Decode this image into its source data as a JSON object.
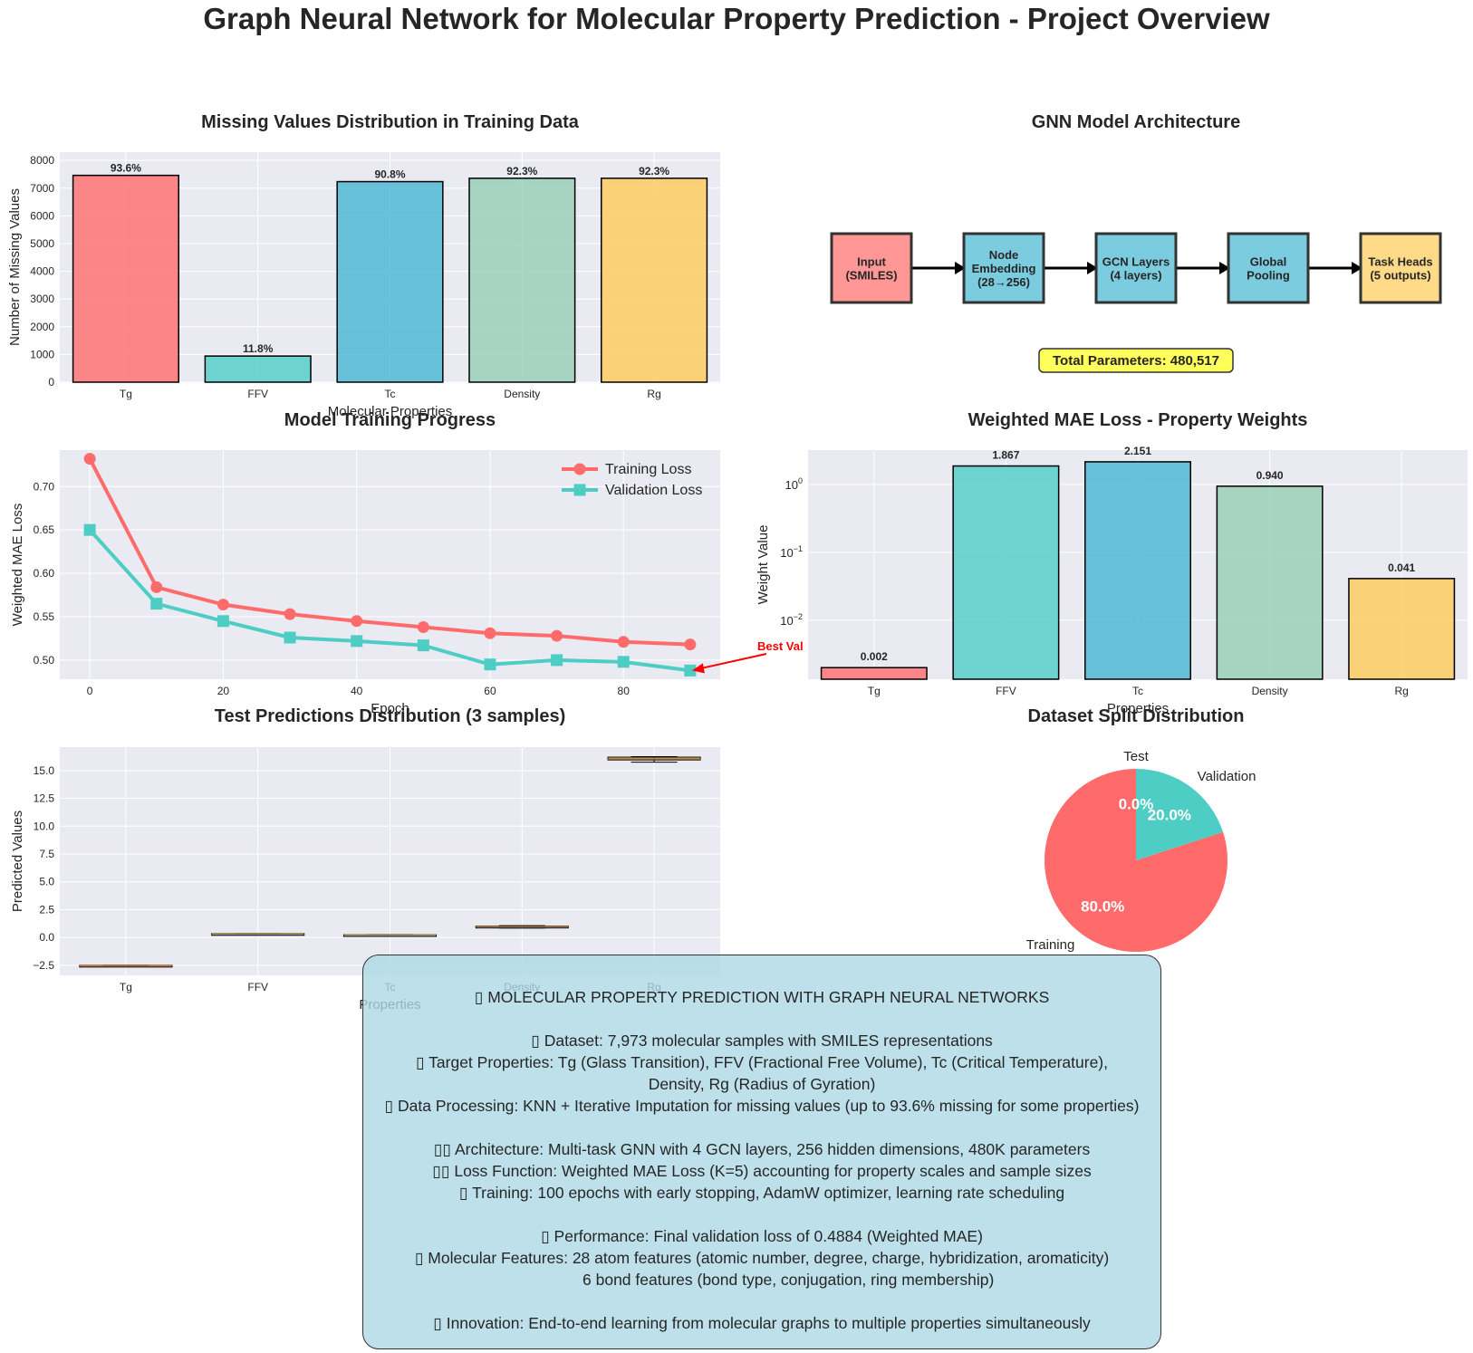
{
  "page_title": "Graph Neural Network for Molecular Property Prediction - Project Overview",
  "colors": {
    "tg": "#ff6b6b",
    "ffv": "#4ecdc4",
    "tc": "#45b7d1",
    "density": "#96ceb4",
    "rg": "#feca57",
    "panel_bg": "#eaeaf2",
    "training": "#ff6b6b",
    "validation": "#4ecdc4",
    "input_box": "#ff6b6b",
    "mid_box": "#45b7d1",
    "out_box": "#feca57",
    "param_badge": "#ffff33"
  },
  "chart_data": [
    {
      "id": "missing",
      "type": "bar",
      "title": "Missing Values Distribution in Training Data",
      "xlabel": "Molecular Properties",
      "ylabel": "Number of Missing Values",
      "categories": [
        "Tg",
        "FFV",
        "Tc",
        "Density",
        "Rg"
      ],
      "values": [
        7462,
        943,
        7236,
        7357,
        7357
      ],
      "data_labels": [
        "93.6%",
        "11.8%",
        "90.8%",
        "92.3%",
        "92.3%"
      ],
      "ylim": [
        0,
        8300
      ],
      "yticks": [
        0,
        1000,
        2000,
        3000,
        4000,
        5000,
        6000,
        7000,
        8000
      ],
      "grid": true
    },
    {
      "id": "architecture",
      "type": "diagram",
      "title": "GNN Model Architecture",
      "nodes": [
        {
          "lines": [
            "Input",
            "(SMILES)"
          ]
        },
        {
          "lines": [
            "Node",
            "Embedding",
            "(28→256)"
          ]
        },
        {
          "lines": [
            "GCN Layers",
            "(4 layers)"
          ]
        },
        {
          "lines": [
            "Global",
            "Pooling"
          ]
        },
        {
          "lines": [
            "Task Heads",
            "(5 outputs)"
          ]
        }
      ],
      "badge": "Total Parameters: 480,517"
    },
    {
      "id": "training",
      "type": "line",
      "title": "Model Training Progress",
      "xlabel": "Epoch",
      "ylabel": "Weighted MAE Loss",
      "x": [
        0,
        10,
        20,
        30,
        40,
        50,
        60,
        70,
        80,
        90
      ],
      "series": [
        {
          "name": "Training Loss",
          "values": [
            0.732,
            0.584,
            0.564,
            0.553,
            0.545,
            0.538,
            0.531,
            0.528,
            0.521,
            0.518
          ]
        },
        {
          "name": "Validation Loss",
          "values": [
            0.65,
            0.565,
            0.545,
            0.526,
            0.522,
            0.517,
            0.495,
            0.5,
            0.498,
            0.488
          ]
        }
      ],
      "xlim": [
        -4.5,
        94.5
      ],
      "ylim": [
        0.478,
        0.742
      ],
      "xticks": [
        0,
        20,
        40,
        60,
        80
      ],
      "yticks": [
        0.5,
        0.55,
        0.6,
        0.65,
        0.7
      ],
      "ytick_labels": [
        "0.50",
        "0.55",
        "0.60",
        "0.65",
        "0.70"
      ],
      "annotation": {
        "text": "Best Val",
        "x": 90,
        "y": 0.488
      },
      "legend": "top-right",
      "grid": true
    },
    {
      "id": "weights",
      "type": "bar",
      "title": "Weighted MAE Loss - Property Weights",
      "xlabel": "Properties",
      "ylabel": "Weight Value",
      "categories": [
        "Tg",
        "FFV",
        "Tc",
        "Density",
        "Rg"
      ],
      "values": [
        0.002,
        1.867,
        2.151,
        0.94,
        0.041
      ],
      "data_labels": [
        "0.002",
        "1.867",
        "2.151",
        "0.940",
        "0.041"
      ],
      "yscale": "log",
      "ylim": [
        0.00135,
        3.2
      ],
      "ytick_labels": [
        {
          "base": "10",
          "exp": "0",
          "value": 1
        },
        {
          "base": "10",
          "exp": "−1",
          "value": 0.1
        },
        {
          "base": "10",
          "exp": "−2",
          "value": 0.01
        }
      ],
      "grid": true
    },
    {
      "id": "predictions",
      "type": "box",
      "title": "Test Predictions Distribution (3 samples)",
      "xlabel": "Properties",
      "ylabel": "Predicted Values",
      "categories": [
        "Tg",
        "FFV",
        "Tc",
        "Density",
        "Rg"
      ],
      "boxes": [
        {
          "min": -2.55,
          "q1": -2.53,
          "median": -2.51,
          "q3": -2.49,
          "max": -2.48
        },
        {
          "min": 0.33,
          "q1": 0.34,
          "median": 0.35,
          "q3": 0.36,
          "max": 0.37
        },
        {
          "min": 0.23,
          "q1": 0.24,
          "median": 0.25,
          "q3": 0.26,
          "max": 0.27
        },
        {
          "min": 0.85,
          "q1": 0.92,
          "median": 0.96,
          "q3": 1.02,
          "max": 1.06
        },
        {
          "min": 15.75,
          "q1": 15.95,
          "median": 16.05,
          "q3": 16.2,
          "max": 16.25
        }
      ],
      "ylim": [
        -3.4,
        17.1
      ],
      "yticks": [
        -2.5,
        0.0,
        2.5,
        5.0,
        7.5,
        10.0,
        12.5,
        15.0
      ],
      "ytick_labels": [
        "−2.5",
        "0.0",
        "2.5",
        "5.0",
        "7.5",
        "10.0",
        "12.5",
        "15.0"
      ],
      "grid": true
    },
    {
      "id": "split",
      "type": "pie",
      "title": "Dataset Split Distribution",
      "labels": [
        "Training",
        "Validation",
        "Test"
      ],
      "values": [
        80.0,
        20.0,
        0.0
      ],
      "pct_labels": [
        "80.0%",
        "20.0%",
        "0.0%"
      ]
    }
  ],
  "summary": {
    "lines": [
      "▯ MOLECULAR PROPERTY PREDICTION WITH GRAPH NEURAL NETWORKS",
      "",
      "▯ Dataset: 7,973 molecular samples with SMILES representations",
      "▯ Target Properties: Tg (Glass Transition), FFV (Fractional Free Volume), Tc (Critical Temperature),",
      "Density, Rg (Radius of Gyration)",
      "▯ Data Processing: KNN + Iterative Imputation for missing values (up to 93.6% missing for some properties)",
      "",
      "▯▯ Architecture: Multi-task GNN with 4 GCN layers, 256 hidden dimensions, 480K parameters",
      "▯▯ Loss Function: Weighted MAE Loss (K=5) accounting for property scales and sample sizes",
      "▯ Training: 100 epochs with early stopping, AdamW optimizer, learning rate scheduling",
      "",
      "▯ Performance: Final validation loss of 0.4884 (Weighted MAE)",
      "▯ Molecular Features: 28 atom features (atomic number, degree, charge, hybridization, aromaticity)",
      "            6 bond features (bond type, conjugation, ring membership)",
      "",
      "▯ Innovation: End-to-end learning from molecular graphs to multiple properties simultaneously"
    ]
  }
}
